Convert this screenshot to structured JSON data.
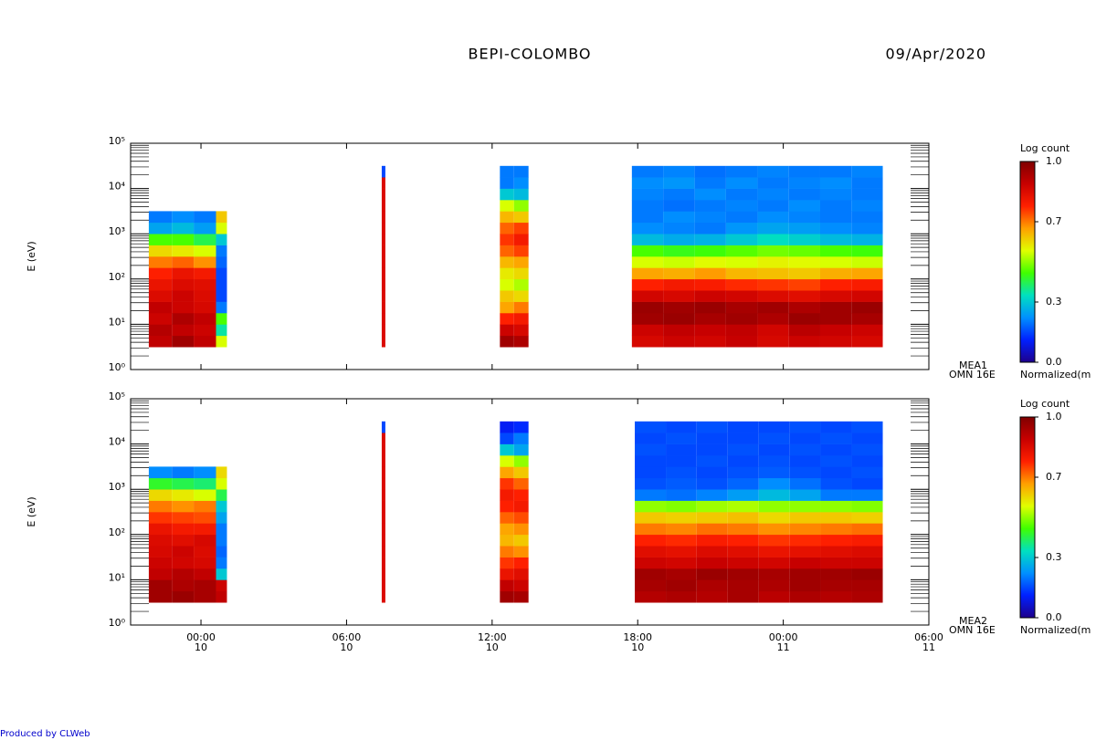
{
  "title": "BEPI-COLOMBO",
  "date": "09/Apr/2020",
  "footer": "Produced by CLWeb",
  "chart_data": [
    {
      "type": "spectrogram",
      "ylabel": "E (eV)",
      "instrument": "MEA1",
      "mode": "OMN 16E",
      "xlim": [
        -2.9,
        30
      ],
      "xticks": [
        0,
        6,
        12,
        18,
        24,
        30
      ],
      "ylim": [
        1,
        100000
      ],
      "log_y": true,
      "yticks": [
        {
          "value": 1,
          "label": "10⁰"
        },
        {
          "value": 10,
          "label": "10¹"
        },
        {
          "value": 100,
          "label": "10²"
        },
        {
          "value": 1000,
          "label": "10³"
        },
        {
          "value": 10000,
          "label": "10⁴"
        },
        {
          "value": 100000,
          "label": "10⁵"
        }
      ],
      "energy_bins": [
        3.16,
        5.62,
        10,
        17.8,
        31.6,
        56.2,
        100,
        178,
        316,
        562,
        1000,
        1780,
        3160,
        5620,
        10000,
        17800,
        31600
      ],
      "columns": [
        {
          "t": [
            -2.15,
            -1.2
          ],
          "values": [
            0.9,
            0.92,
            0.88,
            0.9,
            0.85,
            0.82,
            0.78,
            0.7,
            0.6,
            0.45,
            0.25,
            0.2,
            null,
            null,
            null,
            null
          ]
        },
        {
          "t": [
            -1.2,
            -0.3
          ],
          "values": [
            0.95,
            0.9,
            0.93,
            0.88,
            0.88,
            0.85,
            0.82,
            0.72,
            0.58,
            0.45,
            0.28,
            0.22,
            null,
            null,
            null,
            null
          ]
        },
        {
          "t": [
            -0.3,
            0.62
          ],
          "values": [
            0.9,
            0.88,
            0.9,
            0.86,
            0.85,
            0.84,
            0.8,
            0.68,
            0.55,
            0.4,
            0.24,
            0.2,
            null,
            null,
            null,
            null
          ]
        },
        {
          "t": [
            0.62,
            1.07
          ],
          "values": [
            0.55,
            0.35,
            0.45,
            0.2,
            0.15,
            0.15,
            0.15,
            0.18,
            0.2,
            0.3,
            0.55,
            0.62,
            null,
            null,
            null,
            null
          ]
        },
        {
          "t": [
            7.45,
            7.6
          ],
          "values": [
            0.85,
            0.85,
            0.85,
            0.85,
            0.85,
            0.85,
            0.85,
            0.85,
            0.85,
            0.85,
            0.85,
            0.85,
            0.85,
            0.85,
            0.85,
            0.15
          ]
        },
        {
          "t": [
            12.32,
            12.9
          ],
          "values": [
            0.95,
            0.88,
            0.78,
            0.66,
            0.62,
            0.55,
            0.58,
            0.64,
            0.72,
            0.76,
            0.72,
            0.64,
            0.55,
            0.3,
            0.2,
            0.2
          ]
        },
        {
          "t": [
            12.9,
            13.5
          ],
          "values": [
            0.93,
            0.86,
            0.8,
            0.7,
            0.6,
            0.52,
            0.6,
            0.66,
            0.75,
            0.8,
            0.75,
            0.62,
            0.5,
            0.28,
            0.22,
            0.2
          ]
        },
        {
          "t": [
            17.76,
            19.05
          ],
          "values": [
            0.86,
            0.88,
            0.95,
            0.96,
            0.87,
            0.78,
            0.66,
            0.55,
            0.45,
            0.28,
            0.22,
            0.2,
            0.2,
            0.21,
            0.22,
            0.2
          ]
        },
        {
          "t": [
            19.05,
            20.35
          ],
          "values": [
            0.88,
            0.9,
            0.96,
            0.95,
            0.86,
            0.8,
            0.65,
            0.54,
            0.43,
            0.26,
            0.21,
            0.22,
            0.19,
            0.2,
            0.23,
            0.21
          ]
        },
        {
          "t": [
            20.35,
            21.64
          ],
          "values": [
            0.87,
            0.89,
            0.94,
            0.96,
            0.88,
            0.79,
            0.67,
            0.56,
            0.44,
            0.27,
            0.2,
            0.21,
            0.2,
            0.22,
            0.2,
            0.19
          ]
        },
        {
          "t": [
            21.64,
            22.94
          ],
          "values": [
            0.89,
            0.9,
            0.95,
            0.94,
            0.87,
            0.77,
            0.64,
            0.55,
            0.46,
            0.3,
            0.23,
            0.2,
            0.21,
            0.2,
            0.22,
            0.2
          ]
        },
        {
          "t": [
            22.94,
            24.23
          ],
          "values": [
            0.86,
            0.87,
            0.93,
            0.95,
            0.85,
            0.76,
            0.63,
            0.57,
            0.48,
            0.33,
            0.25,
            0.22,
            0.2,
            0.21,
            0.2,
            0.21
          ]
        },
        {
          "t": [
            24.23,
            25.52
          ],
          "values": [
            0.88,
            0.91,
            0.96,
            0.93,
            0.84,
            0.75,
            0.62,
            0.56,
            0.47,
            0.31,
            0.24,
            0.21,
            0.22,
            0.2,
            0.21,
            0.2
          ]
        },
        {
          "t": [
            25.52,
            26.81
          ],
          "values": [
            0.87,
            0.89,
            0.95,
            0.95,
            0.86,
            0.78,
            0.65,
            0.55,
            0.45,
            0.28,
            0.22,
            0.2,
            0.2,
            0.21,
            0.22,
            0.2
          ]
        },
        {
          "t": [
            26.81,
            28.1
          ],
          "values": [
            0.86,
            0.88,
            0.94,
            0.96,
            0.87,
            0.79,
            0.66,
            0.54,
            0.44,
            0.27,
            0.21,
            0.2,
            0.21,
            0.2,
            0.2,
            0.21
          ]
        }
      ],
      "colorbar": {
        "title": "Log count",
        "label": "Normalized(m",
        "clim": [
          0,
          1
        ],
        "ticks": [
          {
            "value": 0,
            "label": "0.0"
          },
          {
            "value": 0.3,
            "label": "0.3"
          },
          {
            "value": 0.7,
            "label": "0.7"
          },
          {
            "value": 1,
            "label": "1.0"
          }
        ],
        "colormap": [
          "#1e008c",
          "#0020ff",
          "#0090ff",
          "#00e0c0",
          "#40ff00",
          "#e0ff00",
          "#ffa000",
          "#ff2000",
          "#c80000",
          "#800000"
        ]
      }
    },
    {
      "type": "spectrogram",
      "ylabel": "E (eV)",
      "instrument": "MEA2",
      "mode": "OMN 16E",
      "xlim": [
        -2.9,
        30
      ],
      "xticks": [
        {
          "value": 0,
          "label": "00:00\n10"
        },
        {
          "value": 6,
          "label": "06:00\n10"
        },
        {
          "value": 12,
          "label": "12:00\n10"
        },
        {
          "value": 18,
          "label": "18:00\n10"
        },
        {
          "value": 24,
          "label": "00:00\n11"
        },
        {
          "value": 30,
          "label": "06:00\n11"
        }
      ],
      "ylim": [
        1,
        100000
      ],
      "log_y": true,
      "yticks": [
        {
          "value": 1,
          "label": "10⁰"
        },
        {
          "value": 10,
          "label": "10¹"
        },
        {
          "value": 100,
          "label": "10²"
        },
        {
          "value": 1000,
          "label": "10³"
        },
        {
          "value": 10000,
          "label": "10⁴"
        },
        {
          "value": 100000,
          "label": "10⁵"
        }
      ],
      "energy_bins": [
        3.16,
        5.62,
        10,
        17.8,
        31.6,
        56.2,
        100,
        178,
        316,
        562,
        1000,
        1780,
        3160,
        5620,
        10000,
        17800,
        31600
      ],
      "columns": [
        {
          "t": [
            -2.15,
            -1.2
          ],
          "values": [
            0.95,
            0.95,
            0.9,
            0.88,
            0.86,
            0.85,
            0.82,
            0.76,
            0.7,
            0.6,
            0.42,
            0.22,
            null,
            null,
            null,
            null
          ]
        },
        {
          "t": [
            -1.2,
            -0.3
          ],
          "values": [
            0.96,
            0.93,
            0.92,
            0.87,
            0.88,
            0.84,
            0.8,
            0.75,
            0.68,
            0.58,
            0.4,
            0.2,
            null,
            null,
            null,
            null
          ]
        },
        {
          "t": [
            -0.3,
            0.62
          ],
          "values": [
            0.94,
            0.94,
            0.9,
            0.86,
            0.85,
            0.86,
            0.8,
            0.74,
            0.7,
            0.55,
            0.38,
            0.22,
            null,
            null,
            null,
            null
          ]
        },
        {
          "t": [
            0.62,
            1.07
          ],
          "values": [
            0.9,
            0.88,
            0.3,
            0.2,
            0.18,
            0.2,
            0.2,
            0.25,
            0.3,
            0.4,
            0.55,
            0.6,
            null,
            null,
            null,
            null
          ]
        },
        {
          "t": [
            7.45,
            7.6
          ],
          "values": [
            0.85,
            0.85,
            0.85,
            0.85,
            0.85,
            0.85,
            0.85,
            0.85,
            0.85,
            0.85,
            0.85,
            0.85,
            0.85,
            0.85,
            0.85,
            0.15
          ]
        },
        {
          "t": [
            12.32,
            12.9
          ],
          "values": [
            0.95,
            0.9,
            0.82,
            0.76,
            0.7,
            0.64,
            0.66,
            0.72,
            0.78,
            0.8,
            0.76,
            0.66,
            0.55,
            0.3,
            0.15,
            0.1
          ]
        },
        {
          "t": [
            12.9,
            13.5
          ],
          "values": [
            0.94,
            0.88,
            0.84,
            0.78,
            0.68,
            0.62,
            0.68,
            0.74,
            0.8,
            0.78,
            0.72,
            0.62,
            0.5,
            0.25,
            0.2,
            0.12
          ]
        },
        {
          "t": [
            17.88,
            19.16
          ],
          "values": [
            0.92,
            0.94,
            0.95,
            0.88,
            0.84,
            0.78,
            0.7,
            0.62,
            0.5,
            0.2,
            0.16,
            0.15,
            0.15,
            0.16,
            0.15,
            0.16
          ]
        },
        {
          "t": [
            19.16,
            20.43
          ],
          "values": [
            0.93,
            0.95,
            0.94,
            0.87,
            0.83,
            0.77,
            0.69,
            0.61,
            0.49,
            0.19,
            0.17,
            0.16,
            0.15,
            0.15,
            0.16,
            0.15
          ]
        },
        {
          "t": [
            20.43,
            21.71
          ],
          "values": [
            0.92,
            0.93,
            0.96,
            0.89,
            0.85,
            0.79,
            0.71,
            0.62,
            0.51,
            0.21,
            0.16,
            0.15,
            0.16,
            0.15,
            0.15,
            0.16
          ]
        },
        {
          "t": [
            21.71,
            22.99
          ],
          "values": [
            0.94,
            0.94,
            0.95,
            0.88,
            0.84,
            0.78,
            0.7,
            0.63,
            0.52,
            0.24,
            0.18,
            0.16,
            0.15,
            0.16,
            0.15,
            0.15
          ]
        },
        {
          "t": [
            22.99,
            24.27
          ],
          "values": [
            0.91,
            0.93,
            0.94,
            0.87,
            0.82,
            0.76,
            0.68,
            0.6,
            0.5,
            0.28,
            0.22,
            0.17,
            0.16,
            0.15,
            0.16,
            0.15
          ]
        },
        {
          "t": [
            24.27,
            25.54
          ],
          "values": [
            0.93,
            0.95,
            0.95,
            0.89,
            0.83,
            0.77,
            0.69,
            0.62,
            0.5,
            0.25,
            0.19,
            0.16,
            0.15,
            0.16,
            0.15,
            0.16
          ]
        },
        {
          "t": [
            25.54,
            26.82
          ],
          "values": [
            0.92,
            0.94,
            0.95,
            0.88,
            0.84,
            0.78,
            0.7,
            0.62,
            0.5,
            0.2,
            0.16,
            0.15,
            0.16,
            0.15,
            0.16,
            0.15
          ]
        },
        {
          "t": [
            26.82,
            28.1
          ],
          "values": [
            0.93,
            0.94,
            0.96,
            0.88,
            0.85,
            0.79,
            0.71,
            0.61,
            0.49,
            0.2,
            0.15,
            0.16,
            0.15,
            0.16,
            0.15,
            0.16
          ]
        }
      ],
      "colorbar": {
        "title": "Log count",
        "label": "Normalized(m",
        "clim": [
          0,
          1
        ],
        "ticks": [
          {
            "value": 0,
            "label": "0.0"
          },
          {
            "value": 0.3,
            "label": "0.3"
          },
          {
            "value": 0.7,
            "label": "0.7"
          },
          {
            "value": 1,
            "label": "1.0"
          }
        ],
        "colormap": [
          "#1e008c",
          "#0020ff",
          "#0090ff",
          "#00e0c0",
          "#40ff00",
          "#e0ff00",
          "#ffa000",
          "#ff2000",
          "#c80000",
          "#800000"
        ]
      }
    }
  ]
}
